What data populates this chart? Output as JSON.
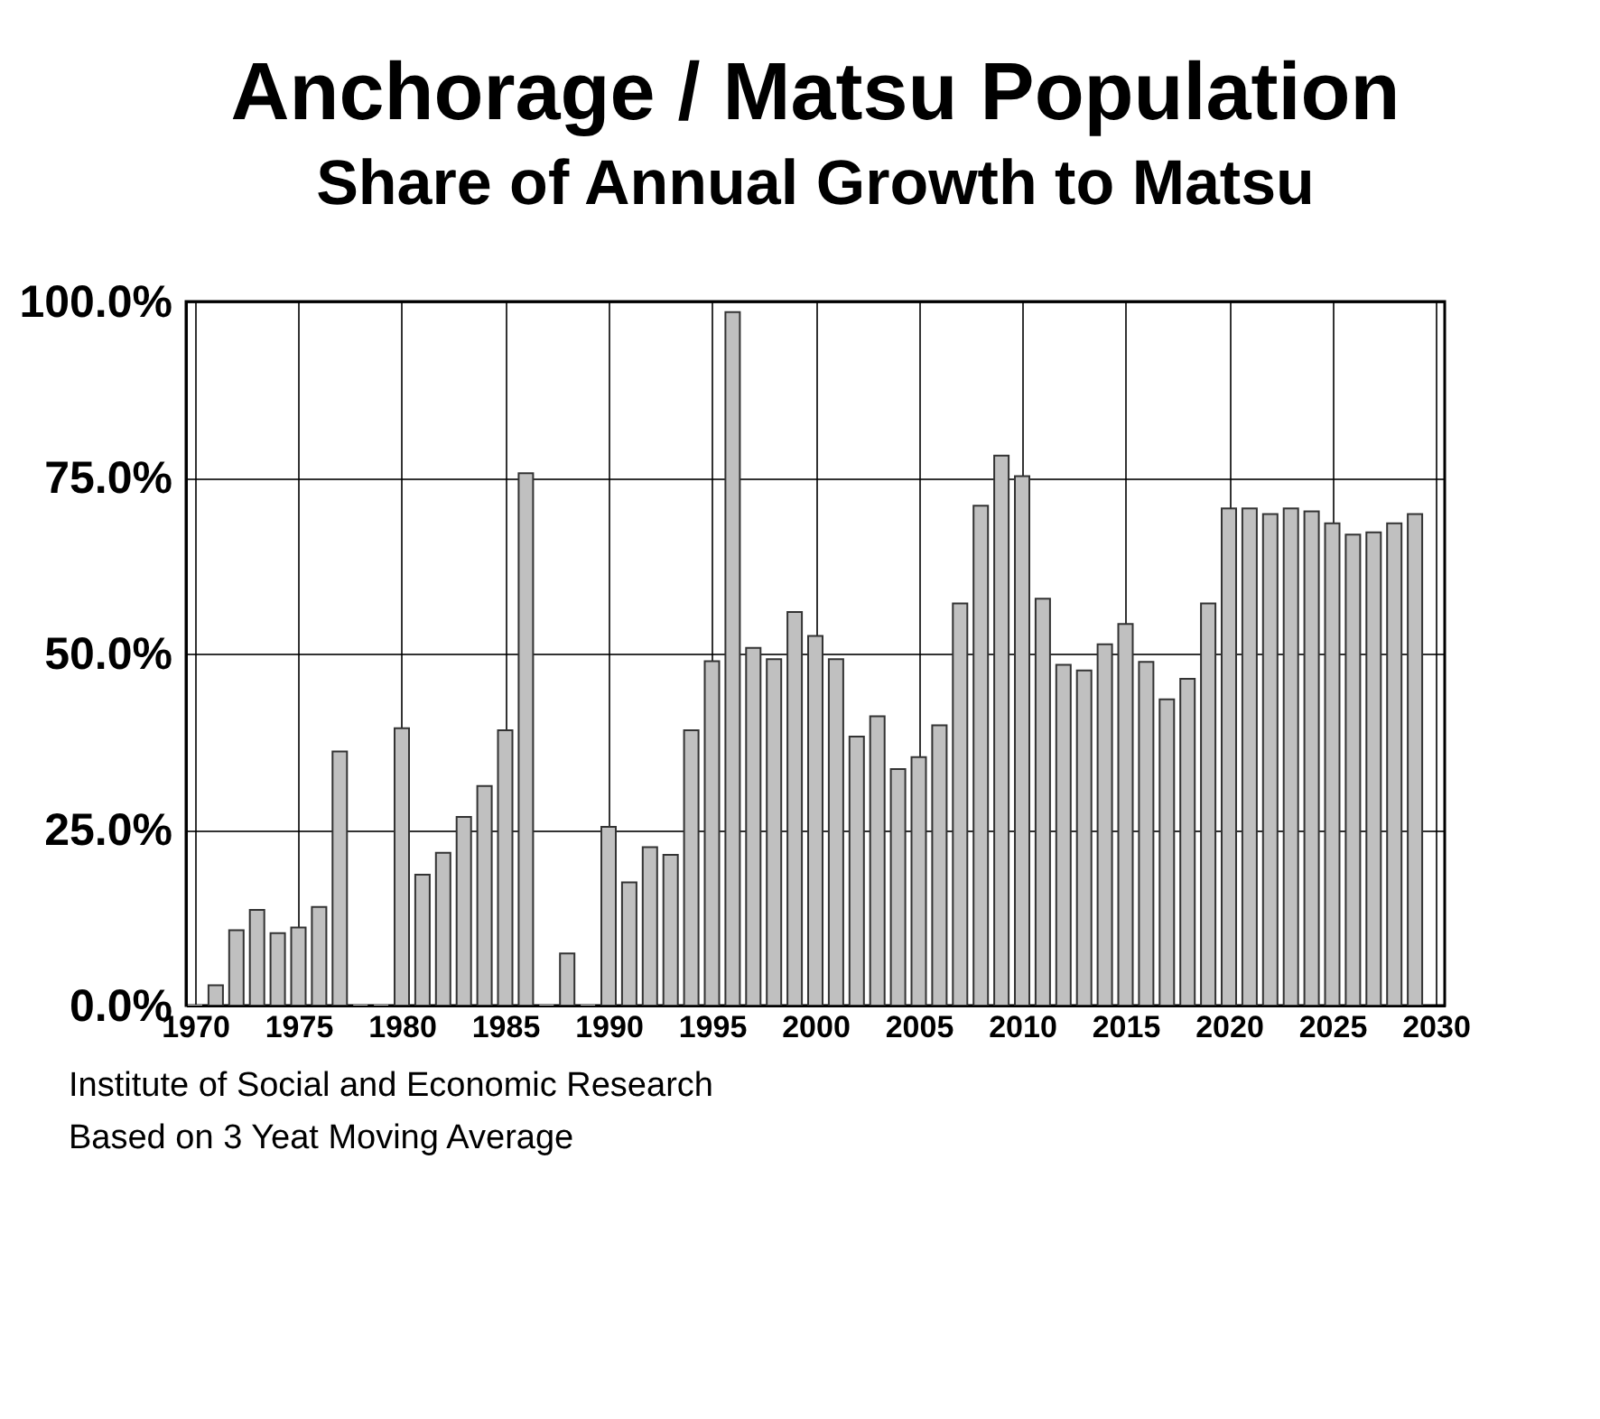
{
  "chart_data": {
    "type": "bar",
    "title": "Anchorage / Matsu Population",
    "subtitle": "Share of Annual Growth to Matsu",
    "x": [
      1970,
      1971,
      1972,
      1973,
      1974,
      1975,
      1976,
      1977,
      1978,
      1979,
      1980,
      1981,
      1982,
      1983,
      1984,
      1985,
      1986,
      1987,
      1988,
      1989,
      1990,
      1991,
      1992,
      1993,
      1994,
      1995,
      1996,
      1997,
      1998,
      1999,
      2000,
      2001,
      2002,
      2003,
      2004,
      2005,
      2006,
      2007,
      2008,
      2009,
      2010,
      2011,
      2012,
      2013,
      2014,
      2015,
      2016,
      2017,
      2018,
      2019,
      2020,
      2021,
      2022,
      2023,
      2024,
      2025,
      2026,
      2027,
      2028,
      2029
    ],
    "values": [
      0,
      2.9,
      10.7,
      13.6,
      10.3,
      11.1,
      14.0,
      36.1,
      0,
      0,
      39.4,
      18.6,
      21.7,
      26.8,
      31.2,
      39.1,
      75.6,
      0,
      7.4,
      0,
      25.4,
      17.5,
      22.5,
      21.4,
      39.1,
      48.9,
      98.5,
      50.8,
      49.2,
      55.9,
      52.5,
      49.2,
      38.2,
      41.1,
      33.6,
      35.3,
      39.8,
      57.1,
      71.0,
      78.1,
      75.2,
      57.8,
      48.4,
      47.6,
      51.3,
      54.2,
      48.8,
      43.5,
      46.4,
      57.1,
      70.6,
      70.6,
      69.8,
      70.6,
      70.2,
      68.5,
      66.9,
      67.2,
      68.5,
      69.8
    ],
    "color": "#c0c0c0",
    "xlim": [
      1970,
      2030
    ],
    "xticks": [
      1970,
      1975,
      1980,
      1985,
      1990,
      1995,
      2000,
      2005,
      2010,
      2015,
      2020,
      2025,
      2030
    ],
    "ylim": [
      0,
      100
    ],
    "yticks": [
      {
        "value": 0,
        "label": "0.0%"
      },
      {
        "value": 25,
        "label": "25.0%"
      },
      {
        "value": 50,
        "label": "50.0%"
      },
      {
        "value": 75,
        "label": "75.0%"
      },
      {
        "value": 100,
        "label": "100.0%"
      }
    ],
    "grid": true,
    "annotations": [
      "Institute of Social and Economic Research",
      "Based on 3 Yeat Moving Average"
    ]
  }
}
